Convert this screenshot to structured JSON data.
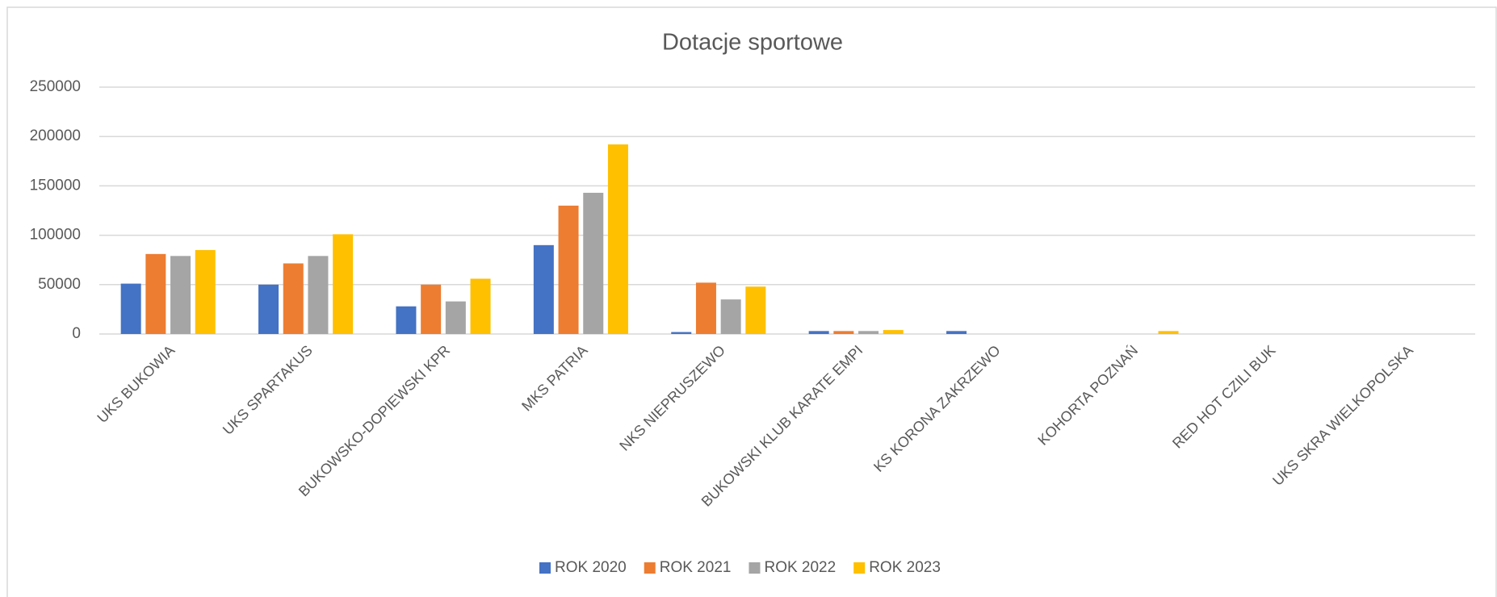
{
  "chart_data": {
    "type": "bar",
    "title": "Dotacje sportowe",
    "categories": [
      "UKS BUKOWIA",
      "UKS SPARTAKUS",
      "BUKOWSKO-DOPIEWSKI KPR",
      "MKS PATRIA",
      "NKS NIEPRUSZEWO",
      "BUKOWSKI KLUB KARATE EMPI",
      "KS KORONA ZAKRZEWO",
      "KOHORTA POZNAŃ",
      "RED HOT CZILI BUK",
      "UKS SKRA WIELKOPOLSKA"
    ],
    "series": [
      {
        "name": "ROK 2020",
        "color": "#4472c4",
        "values": [
          51000,
          50000,
          28000,
          90000,
          2000,
          3000,
          3000,
          0,
          0,
          0
        ]
      },
      {
        "name": "ROK 2021",
        "color": "#ed7d31",
        "values": [
          81000,
          71500,
          50000,
          130000,
          52000,
          3000,
          0,
          0,
          0,
          0
        ]
      },
      {
        "name": "ROK 2022",
        "color": "#a5a5a5",
        "values": [
          79000,
          79000,
          33000,
          143000,
          35000,
          3000,
          0,
          0,
          0,
          0
        ]
      },
      {
        "name": "ROK 2023",
        "color": "#ffc000",
        "values": [
          85000,
          101000,
          56000,
          192000,
          48000,
          4000,
          0,
          3000,
          0,
          0
        ]
      }
    ],
    "ylim": [
      0,
      250000
    ],
    "yticks": [
      0,
      50000,
      100000,
      150000,
      200000,
      250000
    ],
    "grid": true,
    "legend": "bottom"
  }
}
